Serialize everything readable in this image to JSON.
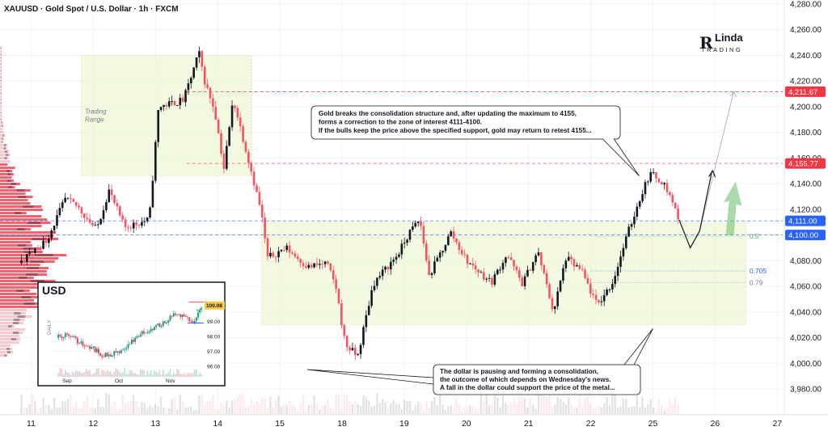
{
  "header": {
    "title": "XAUUSD · Gold Spot / U.S. Dollar · 1h · FXCM"
  },
  "logo": {
    "mark": "R",
    "word": "Linda",
    "sub": "TRADING"
  },
  "colors": {
    "up": "#131722",
    "down": "#f7525f",
    "range_fill": "#e8f5c8",
    "range_stroke": "#b9d98a",
    "badge_red": "#f23645",
    "badge_blue": "#2962ff",
    "profile": "#f23645",
    "fib_blue": "#2962ff",
    "fib_gray": "#787b86",
    "fib_green": "#4caf50",
    "projection_arrow": "#66bb6a"
  },
  "chart_data": {
    "type": "candlestick",
    "x_labels": [
      "11",
      "12",
      "13",
      "14",
      "15",
      "18",
      "19",
      "20",
      "21",
      "22",
      "25",
      "26",
      "27"
    ],
    "y_ticks": [
      "4,280.00",
      "4,260.00",
      "4,240.00",
      "4,220.00",
      "4,200.00",
      "4,180.00",
      "4,160.00",
      "4,140.00",
      "4,120.00",
      "4,100.00",
      "4,080.00",
      "4,060.00",
      "4,040.00",
      "4,020.00",
      "4,000.00",
      "3,980.00"
    ],
    "y_range": [
      3970,
      4282
    ],
    "key_levels": [
      {
        "label": "4,211.67",
        "value": 4211.67,
        "color": "#f23645",
        "style": "dashed"
      },
      {
        "label": "4,155.77",
        "value": 4155.77,
        "color": "#f23645",
        "style": "dashed"
      },
      {
        "label": "4,111.00",
        "value": 4111.0,
        "color": "#2962ff",
        "style": "dashed"
      },
      {
        "label": "4,100.00",
        "value": 4100.0,
        "color": "#2962ff",
        "style": "dashed"
      }
    ],
    "fib_levels": [
      {
        "label": "0.5",
        "value": 4099.0,
        "color": "#4caf50"
      },
      {
        "label": "0.705",
        "value": 4072.0,
        "color": "#2962ff"
      },
      {
        "label": "0.79",
        "value": 4063.0,
        "color": "#787b86"
      }
    ],
    "anchors": [
      [
        -0.2,
        4078
      ],
      [
        0.25,
        4096
      ],
      [
        0.55,
        4128
      ],
      [
        0.75,
        4122
      ],
      [
        1.05,
        4104
      ],
      [
        1.25,
        4135
      ],
      [
        1.5,
        4106
      ],
      [
        1.9,
        4112
      ],
      [
        2.05,
        4200
      ],
      [
        2.45,
        4205
      ],
      [
        2.7,
        4242
      ],
      [
        2.8,
        4218
      ],
      [
        2.95,
        4198
      ],
      [
        3.1,
        4152
      ],
      [
        3.25,
        4206
      ],
      [
        3.55,
        4148
      ],
      [
        3.7,
        4118
      ],
      [
        3.8,
        4082
      ],
      [
        4.1,
        4090
      ],
      [
        4.45,
        4075
      ],
      [
        4.75,
        4078
      ],
      [
        4.9,
        4060
      ],
      [
        5.05,
        4015
      ],
      [
        5.25,
        4005
      ],
      [
        5.5,
        4062
      ],
      [
        5.9,
        4085
      ],
      [
        6.1,
        4103
      ],
      [
        6.25,
        4112
      ],
      [
        6.4,
        4068
      ],
      [
        6.75,
        4102
      ],
      [
        7.0,
        4080
      ],
      [
        7.4,
        4063
      ],
      [
        7.65,
        4085
      ],
      [
        7.9,
        4062
      ],
      [
        8.15,
        4087
      ],
      [
        8.4,
        4040
      ],
      [
        8.6,
        4082
      ],
      [
        8.85,
        4072
      ],
      [
        9.1,
        4045
      ],
      [
        9.35,
        4063
      ],
      [
        9.6,
        4102
      ],
      [
        9.8,
        4130
      ],
      [
        9.95,
        4148
      ],
      [
        10.15,
        4142
      ],
      [
        10.3,
        4128
      ],
      [
        10.42,
        4112
      ]
    ],
    "ranges": [
      {
        "label": "Trading Range",
        "x0": 0.8,
        "x1": 3.55,
        "y0": 4146,
        "y1": 4240
      },
      {
        "label": "",
        "x0": 3.7,
        "x1": 11.5,
        "y0": 4030,
        "y1": 4110
      }
    ],
    "projection_path": [
      [
        10.42,
        4112
      ],
      [
        10.6,
        4090
      ],
      [
        10.75,
        4103
      ],
      [
        10.95,
        4150
      ]
    ],
    "projection_gray": [
      [
        10.75,
        4103
      ],
      [
        11.3,
        4212
      ]
    ],
    "annotations": [
      {
        "lines": [
          "Gold breaks the consolidation structure and, after updating the maximum to 4155,",
          "forms a correction to the zone of interest 4111-4100.",
          "If the bulls keep the price above the specified support, gold may return to retest 4155..."
        ]
      },
      {
        "lines": [
          "The dollar is pausing and forming a consolidation,",
          "the outcome of which depends on Wednesday's news.",
          "A fall in the dollar could support the price of the metal..."
        ]
      }
    ],
    "inset": {
      "title": "USD",
      "side_label": "DAILY",
      "y_ticks": [
        "99.00",
        "98.00",
        "97.00",
        "96.00"
      ],
      "x_labels": [
        "Sep",
        "Oct",
        "Nov"
      ],
      "last_price": "100.08",
      "anchors": [
        [
          0,
          97.9
        ],
        [
          0.08,
          98.2
        ],
        [
          0.15,
          97.6
        ],
        [
          0.25,
          97.2
        ],
        [
          0.32,
          96.7
        ],
        [
          0.42,
          96.9
        ],
        [
          0.5,
          97.5
        ],
        [
          0.58,
          98.2
        ],
        [
          0.68,
          98.6
        ],
        [
          0.76,
          99.1
        ],
        [
          0.82,
          99.5
        ],
        [
          0.88,
          99.3
        ],
        [
          0.93,
          98.9
        ],
        [
          1.0,
          100.1
        ]
      ]
    }
  }
}
